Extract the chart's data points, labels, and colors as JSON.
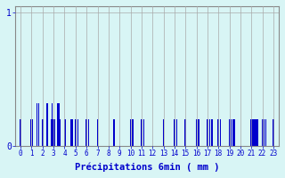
{
  "title": "",
  "xlabel": "Précipitations 6min ( mm )",
  "ylabel": "",
  "background_color": "#d8f5f5",
  "bar_color": "#0000cc",
  "grid_color": "#aaaaaa",
  "text_color": "#0000cc",
  "ylim": [
    0,
    1.05
  ],
  "yticks": [
    0,
    1
  ],
  "xlim": [
    -0.5,
    23.5
  ],
  "categories": [
    0,
    1,
    2,
    3,
    4,
    5,
    6,
    7,
    8,
    9,
    10,
    11,
    12,
    13,
    14,
    15,
    16,
    17,
    18,
    19,
    20,
    21,
    22,
    23
  ],
  "bars": [
    [
      0.0,
      0.2
    ],
    [
      0.9,
      0.2
    ],
    [
      1.1,
      0.2
    ],
    [
      1.5,
      0.32
    ],
    [
      1.65,
      0.32
    ],
    [
      2.0,
      0.2
    ],
    [
      2.4,
      0.32
    ],
    [
      2.8,
      0.2
    ],
    [
      2.85,
      0.32
    ],
    [
      3.0,
      0.2
    ],
    [
      3.1,
      0.2
    ],
    [
      3.4,
      0.32
    ],
    [
      3.5,
      0.32
    ],
    [
      3.6,
      0.2
    ],
    [
      4.0,
      0.2
    ],
    [
      4.1,
      0.2
    ],
    [
      4.55,
      0.2
    ],
    [
      4.7,
      0.2
    ],
    [
      5.0,
      0.2
    ],
    [
      5.2,
      0.2
    ],
    [
      6.0,
      0.2
    ],
    [
      6.2,
      0.2
    ],
    [
      7.0,
      0.2
    ],
    [
      8.5,
      0.2
    ],
    [
      10.0,
      0.2
    ],
    [
      10.2,
      0.2
    ],
    [
      11.0,
      0.2
    ],
    [
      11.2,
      0.2
    ],
    [
      13.0,
      0.2
    ],
    [
      14.0,
      0.2
    ],
    [
      14.2,
      0.2
    ],
    [
      15.0,
      0.2
    ],
    [
      16.0,
      0.2
    ],
    [
      16.2,
      0.2
    ],
    [
      17.0,
      0.2
    ],
    [
      17.2,
      0.2
    ],
    [
      17.4,
      0.2
    ],
    [
      18.0,
      0.2
    ],
    [
      18.2,
      0.2
    ],
    [
      19.0,
      0.2
    ],
    [
      19.15,
      0.2
    ],
    [
      19.3,
      0.2
    ],
    [
      19.45,
      0.2
    ],
    [
      21.0,
      0.2
    ],
    [
      21.15,
      0.2
    ],
    [
      21.3,
      0.2
    ],
    [
      21.45,
      0.2
    ],
    [
      21.6,
      0.2
    ],
    [
      22.0,
      0.2
    ],
    [
      22.15,
      0.2
    ],
    [
      22.3,
      0.2
    ],
    [
      23.0,
      0.2
    ]
  ],
  "bar_width": 0.12
}
